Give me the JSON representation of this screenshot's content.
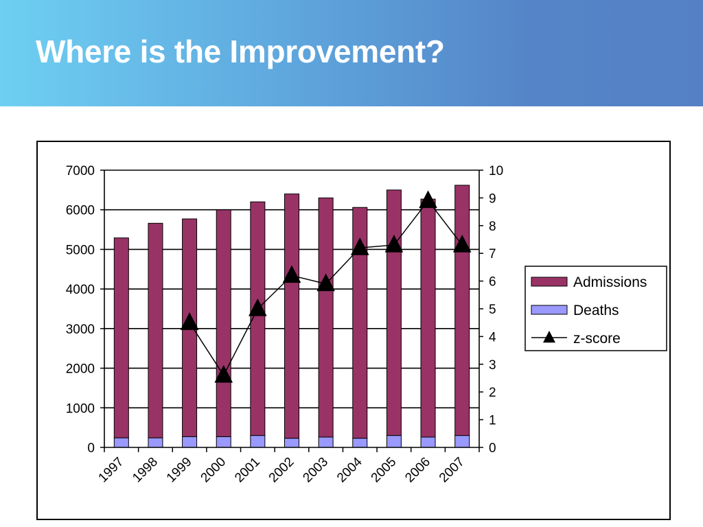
{
  "slide": {
    "title": "Where is the Improvement?"
  },
  "colors": {
    "admissions": "#993366",
    "deaths": "#9999ff",
    "zscore": "#000000",
    "header_start": "#6ecff2",
    "header_end": "#5580c5"
  },
  "chart_data": {
    "type": "bar",
    "stacked": true,
    "title": "",
    "xlabel": "",
    "ylabel": "",
    "categories": [
      "1997",
      "1998",
      "1999",
      "2000",
      "2001",
      "2002",
      "2003",
      "2004",
      "2005",
      "2006",
      "2007"
    ],
    "series": [
      {
        "name": "Admissions",
        "type": "bar",
        "axis": "left",
        "values": [
          5050,
          5420,
          5500,
          5730,
          5900,
          6170,
          6040,
          5830,
          6200,
          6010,
          6320
        ]
      },
      {
        "name": "Deaths",
        "type": "bar",
        "axis": "left",
        "values": [
          240,
          240,
          270,
          270,
          300,
          230,
          260,
          230,
          300,
          260,
          300
        ]
      },
      {
        "name": "z-score",
        "type": "line",
        "marker": "triangle",
        "axis": "right",
        "values": [
          null,
          null,
          4.5,
          2.6,
          5.0,
          6.2,
          5.9,
          7.2,
          7.3,
          8.9,
          7.3
        ]
      }
    ],
    "ylim": [
      0,
      7000
    ],
    "y_ticks": [
      "0",
      "1000",
      "2000",
      "3000",
      "4000",
      "5000",
      "6000",
      "7000"
    ],
    "y2lim": [
      0,
      10
    ],
    "y2_ticks": [
      "0",
      "1",
      "2",
      "3",
      "4",
      "5",
      "6",
      "7",
      "8",
      "9",
      "10"
    ],
    "grid": "horizontal major lines",
    "legend_position": "right"
  }
}
